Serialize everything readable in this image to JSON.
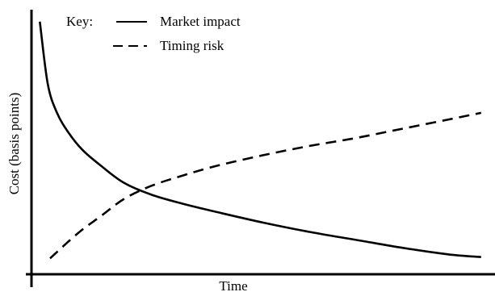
{
  "chart_data": {
    "type": "line",
    "title": "",
    "xlabel": "Time",
    "ylabel": "Cost (basis points)",
    "xlim": [
      0,
      10
    ],
    "ylim": [
      0,
      10
    ],
    "grid": false,
    "x_ticks_shown": false,
    "y_ticks_shown": false,
    "legend": {
      "title": "Key:",
      "placement": "top-left",
      "entries": [
        {
          "label": "Market impact",
          "style": "solid"
        },
        {
          "label": "Timing risk",
          "style": "dashed"
        }
      ]
    },
    "series": [
      {
        "name": "Market impact",
        "style": "solid",
        "color": "#000000",
        "x": [
          0.18,
          0.35,
          0.55,
          0.8,
          1.1,
          1.5,
          2.0,
          2.6,
          3.3,
          4.0,
          5.0,
          6.0,
          7.0,
          8.0,
          9.0,
          9.7
        ],
        "y": [
          9.55,
          7.2,
          6.1,
          5.35,
          4.7,
          4.1,
          3.45,
          3.0,
          2.65,
          2.35,
          1.95,
          1.6,
          1.3,
          1.0,
          0.75,
          0.65
        ]
      },
      {
        "name": "Timing risk",
        "style": "dashed",
        "color": "#000000",
        "x": [
          0.4,
          1.0,
          1.5,
          2.0,
          2.6,
          3.3,
          4.0,
          5.0,
          6.0,
          7.0,
          8.0,
          9.0,
          9.7
        ],
        "y": [
          0.6,
          1.55,
          2.2,
          2.85,
          3.35,
          3.75,
          4.1,
          4.5,
          4.85,
          5.15,
          5.5,
          5.85,
          6.1
        ]
      }
    ]
  }
}
